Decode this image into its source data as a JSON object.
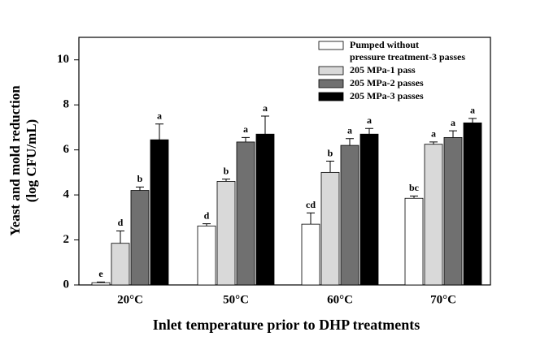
{
  "chart_data": {
    "type": "bar",
    "ylabel": "Yeast and mold reduction\n(log CFU/mL)",
    "xlabel": "Inlet temperature prior to DHP treatments",
    "categories": [
      "20°C",
      "50°C",
      "60°C",
      "70°C"
    ],
    "ylim": [
      0,
      11
    ],
    "yticks": [
      0,
      2,
      4,
      6,
      8,
      10
    ],
    "grid": false,
    "legend": "upper right",
    "series": [
      {
        "name": "Pumped without\npressure treatment-3 passes",
        "color": "#ffffff",
        "values": [
          0.1,
          2.62,
          2.7,
          3.85
        ],
        "errors": [
          0.03,
          0.1,
          0.5,
          0.1
        ],
        "letters": [
          "e",
          "d",
          "cd",
          "bc"
        ]
      },
      {
        "name": "205 MPa-1 pass",
        "color": "#d9d9d9",
        "values": [
          1.85,
          4.6,
          5.0,
          6.25
        ],
        "errors": [
          0.55,
          0.1,
          0.5,
          0.1
        ],
        "letters": [
          "d",
          "b",
          "b",
          "a"
        ]
      },
      {
        "name": "205 MPa-2 passes",
        "color": "#707070",
        "values": [
          4.2,
          6.35,
          6.2,
          6.55
        ],
        "errors": [
          0.15,
          0.2,
          0.3,
          0.3
        ],
        "letters": [
          "b",
          "a",
          "a",
          "a"
        ]
      },
      {
        "name": "205 MPa-3 passes",
        "color": "#000000",
        "values": [
          6.45,
          6.7,
          6.7,
          7.2
        ],
        "errors": [
          0.7,
          0.8,
          0.25,
          0.2
        ],
        "letters": [
          "a",
          "a",
          "a",
          "a"
        ]
      }
    ]
  }
}
